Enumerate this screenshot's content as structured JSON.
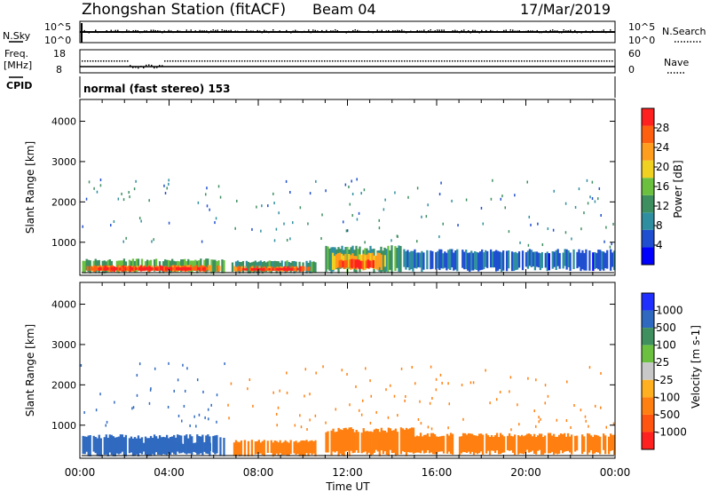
{
  "header": {
    "station": "Zhongshan Station (fitACF)",
    "beam": "Beam 04",
    "date": "17/Mar/2019"
  },
  "nsky_panel": {
    "left_label": "N.Sky",
    "left_ticks": [
      "10^5",
      "10^0"
    ],
    "right_ticks": [
      "10^5",
      "10^0"
    ],
    "right_label": "N.Search"
  },
  "freq_panel": {
    "left_label_1": "Freq.",
    "left_label_2": "[MHz]",
    "left_ticks": [
      "18",
      "8"
    ],
    "right_ticks": [
      "60",
      "0"
    ],
    "right_label": "Nave"
  },
  "cpid_panel": {
    "label": "CPID",
    "mode_text": "normal (fast stereo) 153"
  },
  "colors": {
    "power": [
      "#0000ff",
      "#1f4fd0",
      "#2f8fa0",
      "#3d8f5f",
      "#6cc040",
      "#f0d020",
      "#ff9d1f",
      "#ff6010",
      "#ff2020"
    ],
    "velocity": [
      "#1f2fff",
      "#2f6ac0",
      "#3f8f5f",
      "#6cc040",
      "#c8c8c8",
      "#ffb020",
      "#ff8010",
      "#ff5510",
      "#ff2020"
    ]
  },
  "chart_data": [
    {
      "type": "heatmap",
      "ylabel": "Slant Range [km]",
      "y_ticks": [
        1000,
        2000,
        3000,
        4000
      ],
      "ylim": [
        180,
        4540
      ],
      "x_tick_labels": [
        "00:00",
        "04:00",
        "08:00",
        "12:00",
        "16:00",
        "20:00",
        "00:00"
      ],
      "xlim": [
        0,
        24
      ],
      "colorbar": {
        "label": "Power [dB]",
        "ticks": [
          "4",
          "8",
          "12",
          "16",
          "20",
          "24",
          "28"
        ],
        "range": [
          0,
          32
        ]
      },
      "regions": [
        {
          "t0": 0.1,
          "t1": 6.5,
          "r0": 220,
          "r1": 560,
          "value": 14
        },
        {
          "t0": 0.3,
          "t1": 6.3,
          "r0": 260,
          "r1": 420,
          "value": 26
        },
        {
          "t0": 0.5,
          "t1": 5.8,
          "r0": 290,
          "r1": 380,
          "value": 30
        },
        {
          "t0": 6.8,
          "t1": 10.6,
          "r0": 220,
          "r1": 520,
          "value": 12
        },
        {
          "t0": 6.9,
          "t1": 10.4,
          "r0": 260,
          "r1": 400,
          "value": 26
        },
        {
          "t0": 7.2,
          "t1": 9.8,
          "r0": 290,
          "r1": 360,
          "value": 30
        },
        {
          "t0": 11.0,
          "t1": 14.5,
          "r0": 220,
          "r1": 860,
          "value": 12
        },
        {
          "t0": 11.3,
          "t1": 13.8,
          "r0": 300,
          "r1": 700,
          "value": 22
        },
        {
          "t0": 11.6,
          "t1": 13.2,
          "r0": 330,
          "r1": 560,
          "value": 28
        },
        {
          "t0": 14.5,
          "t1": 19.5,
          "r0": 260,
          "r1": 780,
          "value": 7
        },
        {
          "t0": 19.5,
          "t1": 24.0,
          "r0": 280,
          "r1": 780,
          "value": 6
        }
      ]
    },
    {
      "type": "heatmap",
      "ylabel": "Slant Range [km]",
      "y_ticks": [
        1000,
        2000,
        3000,
        4000
      ],
      "ylim": [
        180,
        4540
      ],
      "x_tick_labels": [
        "00:00",
        "04:00",
        "08:00",
        "12:00",
        "16:00",
        "20:00",
        "00:00"
      ],
      "xlabel": "Time UT",
      "xlim": [
        0,
        24
      ],
      "colorbar": {
        "label": "Velocity [m s-1]",
        "ticks": [
          "1000",
          "500",
          "100",
          "25",
          "-25",
          "-100",
          "-500",
          "-1000"
        ]
      },
      "regions": [
        {
          "t0": 0.1,
          "t1": 6.5,
          "r0": 220,
          "r1": 720,
          "value": 200
        },
        {
          "t0": 2.5,
          "t1": 6.2,
          "r0": 300,
          "r1": 560,
          "value": 400
        },
        {
          "t0": 6.8,
          "t1": 10.6,
          "r0": 220,
          "r1": 600,
          "value": -200
        },
        {
          "t0": 11.0,
          "t1": 15.0,
          "r0": 220,
          "r1": 880,
          "value": -200
        },
        {
          "t0": 15.0,
          "t1": 24.0,
          "r0": 260,
          "r1": 760,
          "value": -200
        }
      ]
    }
  ]
}
